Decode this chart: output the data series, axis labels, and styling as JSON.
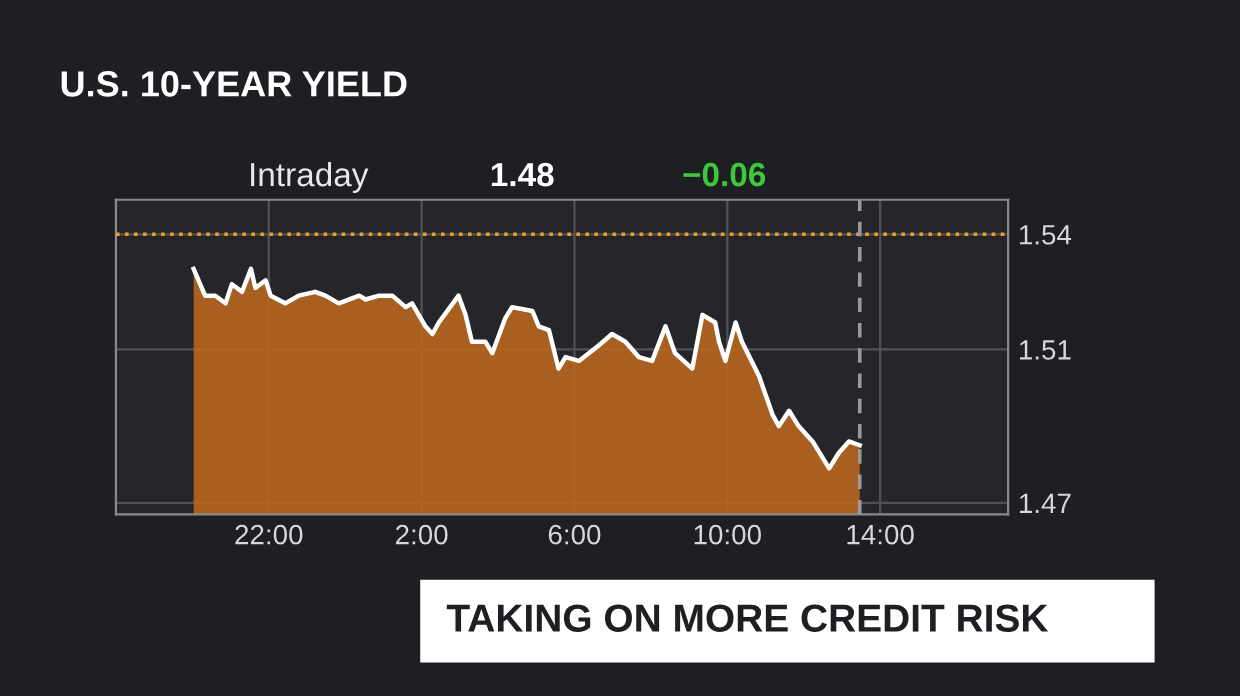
{
  "chart_data": {
    "type": "area",
    "title": "U.S. 10-YEAR YIELD",
    "annotations": [
      "Intraday",
      "1.48",
      "−0.06",
      "TAKING ON MORE CREDIT RISK"
    ],
    "x": [
      "2000-01-01T20:02",
      "2000-01-01T20:20",
      "2000-01-01T20:36",
      "2000-01-01T20:52",
      "2000-01-01T21:02",
      "2000-01-01T21:18",
      "2000-01-01T21:32",
      "2000-01-01T21:39",
      "2000-01-01T21:55",
      "2000-01-01T22:03",
      "2000-01-01T22:26",
      "2000-01-01T22:47",
      "2000-01-01T23:13",
      "2000-01-01T23:29",
      "2000-01-01T23:50",
      "2000-01-02T00:22",
      "2000-01-02T00:32",
      "2000-01-02T00:53",
      "2000-01-02T01:14",
      "2000-01-02T01:35",
      "2000-01-02T01:45",
      "2000-01-02T02:06",
      "2000-01-02T02:17",
      "2000-01-02T02:27",
      "2000-01-02T02:58",
      "2000-01-02T03:09",
      "2000-01-02T03:19",
      "2000-01-02T03:40",
      "2000-01-02T03:51",
      "2000-01-02T04:11",
      "2000-01-02T04:22",
      "2000-01-02T04:54",
      "2000-01-02T05:04",
      "2000-01-02T05:20",
      "2000-01-02T05:35",
      "2000-01-02T05:46",
      "2000-01-02T06:07",
      "2000-01-02T06:38",
      "2000-01-02T06:59",
      "2000-01-02T07:20",
      "2000-01-02T07:41",
      "2000-01-02T08:02",
      "2000-01-02T08:23",
      "2000-01-02T08:38",
      "2000-01-02T09:05",
      "2000-01-02T09:21",
      "2000-01-02T09:41",
      "2000-01-02T09:47",
      "2000-01-02T09:57",
      "2000-01-02T10:13",
      "2000-01-02T10:23",
      "2000-01-02T10:50",
      "2000-01-02T11:11",
      "2000-01-02T11:21",
      "2000-01-02T11:37",
      "2000-01-02T11:52",
      "2000-01-02T12:14",
      "2000-01-02T12:40",
      "2000-01-02T12:55",
      "2000-01-02T13:11",
      "2000-01-02T13:28"
    ],
    "series": [
      {
        "color": "#b8661e",
        "values": [
          1.531,
          1.524,
          1.524,
          1.522,
          1.527,
          1.525,
          1.531,
          1.526,
          1.528,
          1.524,
          1.522,
          1.524,
          1.525,
          1.524,
          1.522,
          1.524,
          1.523,
          1.524,
          1.524,
          1.521,
          1.522,
          1.516,
          1.514,
          1.517,
          1.524,
          1.519,
          1.512,
          1.512,
          1.509,
          1.518,
          1.521,
          1.52,
          1.516,
          1.515,
          1.505,
          1.508,
          1.507,
          1.511,
          1.514,
          1.512,
          1.508,
          1.507,
          1.516,
          1.509,
          1.505,
          1.519,
          1.517,
          1.512,
          1.507,
          1.517,
          1.512,
          1.503,
          1.493,
          1.49,
          1.494,
          1.49,
          1.486,
          1.479,
          1.483,
          1.486,
          1.485
        ]
      }
    ],
    "xlim": [
      "2000-01-01T18:00",
      "2000-01-02T17:21"
    ],
    "xticks": [
      {
        "value": "2000-01-01T22:00",
        "label": "22:00"
      },
      {
        "value": "2000-01-02T02:00",
        "label": "2:00"
      },
      {
        "value": "2000-01-02T06:00",
        "label": "6:00"
      },
      {
        "value": "2000-01-02T10:00",
        "label": "10:00"
      },
      {
        "value": "2000-01-02T14:00",
        "label": "14:00"
      }
    ],
    "ylim": [
      1.467,
      1.549
    ],
    "yticks": [
      1.47,
      1.51,
      1.54
    ],
    "grid": true,
    "ref_lines": [
      {
        "axis": "y",
        "value": 1.54,
        "color": "#f0a020",
        "line_style": "dotted"
      },
      {
        "axis": "x",
        "value": "2000-01-02T13:28",
        "color": "#9a9a9a",
        "line_style": "dashed"
      }
    ]
  }
}
